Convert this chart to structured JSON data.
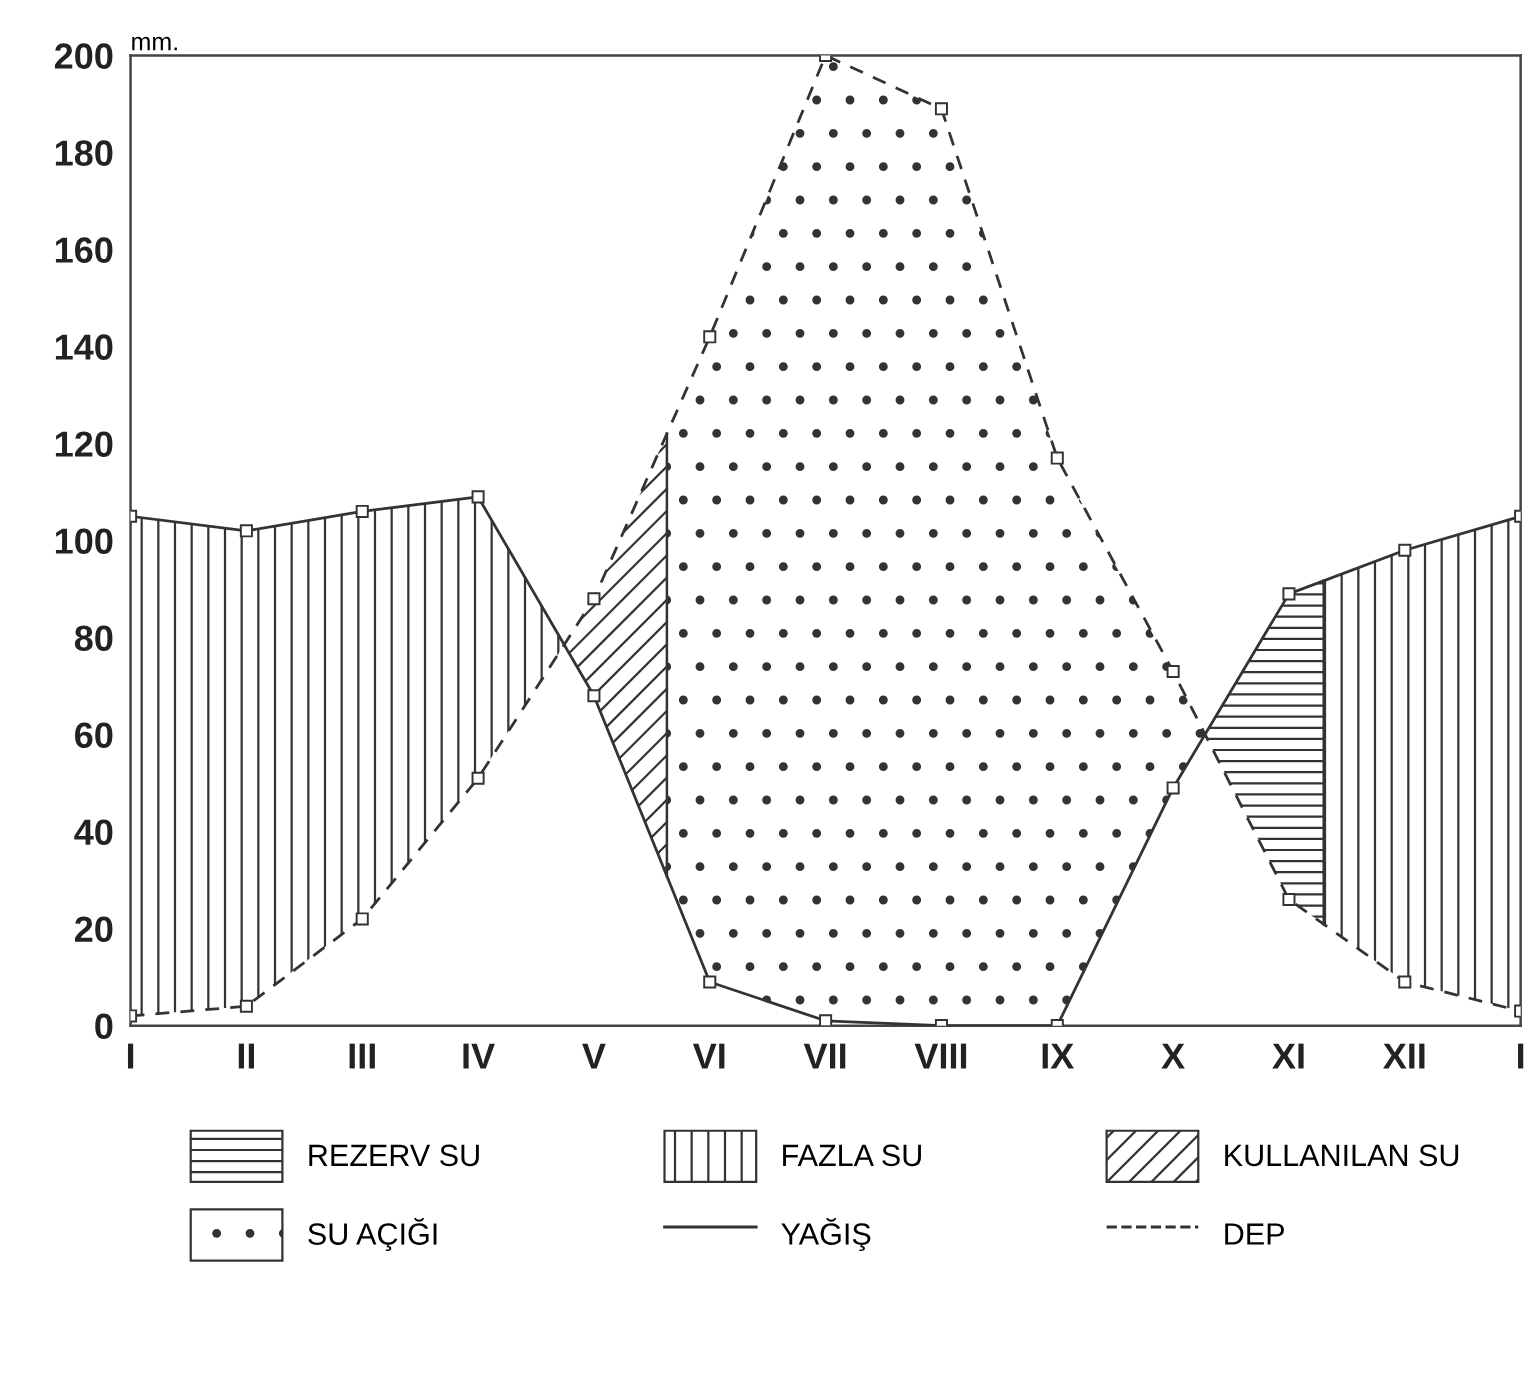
{
  "chart_data": {
    "type": "line",
    "ylabel": "mm.",
    "categories": [
      "I",
      "II",
      "III",
      "IV",
      "V",
      "VI",
      "VII",
      "VIII",
      "IX",
      "X",
      "XI",
      "XII",
      "I"
    ],
    "ylim": [
      0,
      200
    ],
    "yticks": [
      0,
      20,
      40,
      60,
      80,
      100,
      120,
      140,
      160,
      180,
      200
    ],
    "series": [
      {
        "name": "YAĞIŞ",
        "color": "#333333",
        "line_style": "solid",
        "values": [
          105,
          102,
          106,
          109,
          68,
          9,
          1,
          0,
          0,
          49,
          89,
          98,
          105
        ]
      },
      {
        "name": "DEP",
        "color": "#333333",
        "line_style": "dashed",
        "values": [
          2,
          4,
          22,
          51,
          88,
          142,
          200,
          189,
          117,
          73,
          26,
          9,
          3
        ]
      }
    ],
    "annotations": [
      "REZERV SU",
      "FAZLA SU",
      "KULLANILAN SU",
      "SU AÇIĞI"
    ],
    "marker": "square",
    "grid": false,
    "legend": "bottom"
  }
}
